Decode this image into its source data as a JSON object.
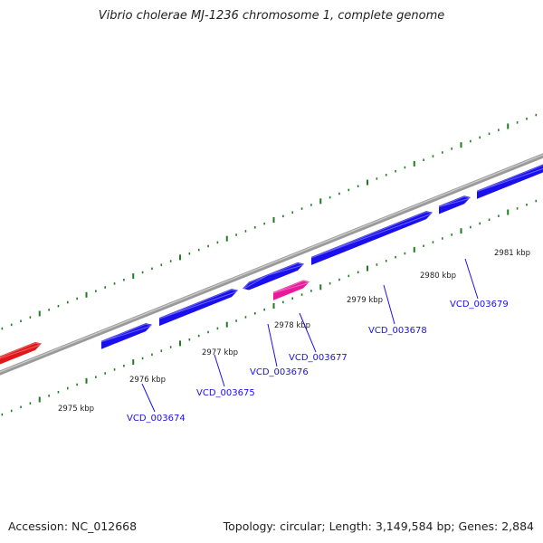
{
  "title": "Vibrio cholerae MJ-1236 chromosome 1, complete genome",
  "footer": {
    "accession": "Accession: NC_012668",
    "summary": "Topology: circular; Length: 3,149,584 bp; Genes: 2,884"
  },
  "colors": {
    "backbone": "#888888",
    "tick": "#1e7d1e",
    "gene_forward": "#1a10ee",
    "gene_red": "#e0181a",
    "gene_pink": "#e8199a",
    "gene_label": "#1a10ee",
    "scale_label": "#222222"
  },
  "scale": {
    "unit": "kbp",
    "labels": [
      "2975 kbp",
      "2976 kbp",
      "2977 kbp",
      "2978 kbp",
      "2979 kbp",
      "2980 kbp",
      "2981 kbp"
    ]
  },
  "genes": [
    {
      "name": "",
      "strand": "forward",
      "color": "red"
    },
    {
      "name": "VCD_003674",
      "strand": "forward",
      "color": "blue"
    },
    {
      "name": "VCD_003675",
      "strand": "forward",
      "color": "blue"
    },
    {
      "name": "VCD_003676",
      "strand": "reverse",
      "color": "blue"
    },
    {
      "name": "",
      "strand": "forward",
      "color": "blue"
    },
    {
      "name": "VCD_003677",
      "strand": "forward",
      "color": "pink"
    },
    {
      "name": "VCD_003678",
      "strand": "forward",
      "color": "blue"
    },
    {
      "name": "VCD_003679",
      "strand": "forward",
      "color": "blue"
    },
    {
      "name": "",
      "strand": "forward",
      "color": "blue"
    }
  ]
}
